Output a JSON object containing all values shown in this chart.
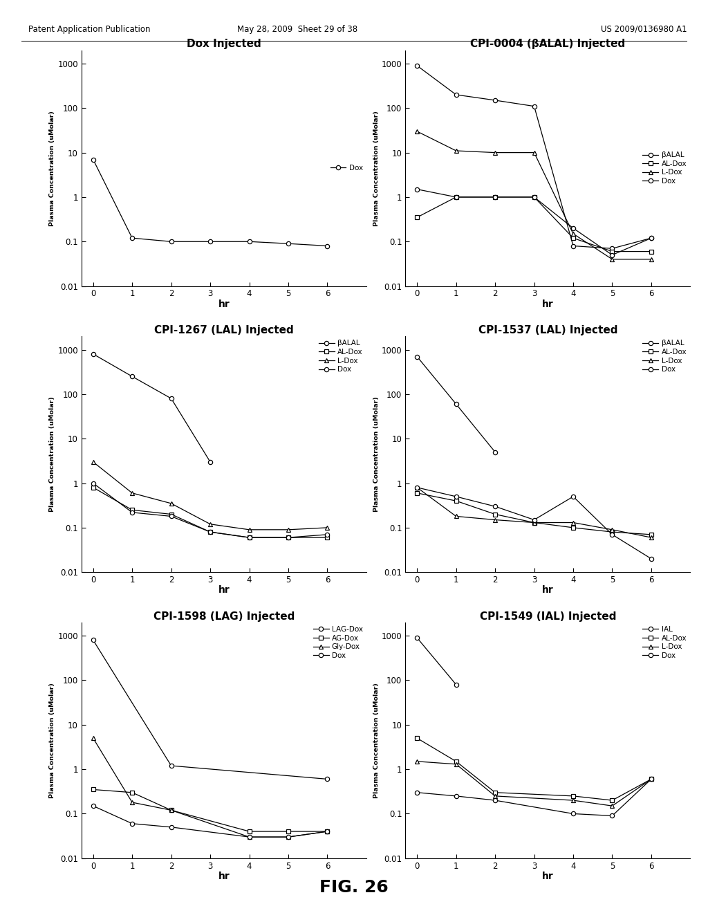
{
  "header_left": "Patent Application Publication",
  "header_mid": "May 28, 2009  Sheet 29 of 38",
  "header_right": "US 2009/0136980 A1",
  "fig_label": "FIG. 26",
  "ylabel": "Plasma Concentration (uMolar)",
  "xlabel": "hr",
  "plots": [
    {
      "title": "Dox Injected",
      "legend_loc": "center right",
      "series": [
        {
          "label": "Dox",
          "marker": "o",
          "x": [
            0,
            1,
            2,
            3,
            4,
            5,
            6
          ],
          "y": [
            7.0,
            0.12,
            0.1,
            0.1,
            0.1,
            0.09,
            0.08
          ]
        }
      ]
    },
    {
      "title": "CPI-0004 (βALAL) Injected",
      "legend_loc": "center right",
      "series": [
        {
          "label": "βALAL",
          "marker": "o",
          "x": [
            0,
            1,
            2,
            3,
            4,
            5,
            6
          ],
          "y": [
            900,
            200,
            150,
            110,
            0.08,
            0.07,
            0.12
          ]
        },
        {
          "label": "AL-Dox",
          "marker": "s",
          "x": [
            0,
            1,
            2,
            3,
            4,
            5,
            6
          ],
          "y": [
            0.35,
            1.0,
            1.0,
            1.0,
            0.12,
            0.06,
            0.06
          ]
        },
        {
          "label": "L-Dox",
          "marker": "^",
          "x": [
            0,
            1,
            2,
            3,
            4,
            5,
            6
          ],
          "y": [
            30,
            11,
            10,
            10,
            0.15,
            0.04,
            0.04
          ]
        },
        {
          "label": "Dox",
          "marker": "o",
          "x": [
            0,
            1,
            2,
            3,
            4,
            5,
            6
          ],
          "y": [
            1.5,
            1.0,
            1.0,
            1.0,
            0.2,
            0.05,
            0.12
          ]
        }
      ]
    },
    {
      "title": "CPI-1267 (LAL) Injected",
      "legend_loc": "upper right",
      "series": [
        {
          "label": "βALAL",
          "marker": "o",
          "x": [
            0,
            1,
            2,
            3
          ],
          "y": [
            800,
            250,
            80,
            3.0
          ]
        },
        {
          "label": "AL-Dox",
          "marker": "s",
          "x": [
            0,
            1,
            2,
            3,
            4,
            5,
            6
          ],
          "y": [
            0.8,
            0.25,
            0.2,
            0.08,
            0.06,
            0.06,
            0.06
          ]
        },
        {
          "label": "L-Dox",
          "marker": "^",
          "x": [
            0,
            1,
            2,
            3,
            4,
            5,
            6
          ],
          "y": [
            3.0,
            0.6,
            0.35,
            0.12,
            0.09,
            0.09,
            0.1
          ]
        },
        {
          "label": "Dox",
          "marker": "o",
          "x": [
            0,
            1,
            2,
            3,
            4,
            5,
            6
          ],
          "y": [
            1.0,
            0.22,
            0.18,
            0.08,
            0.06,
            0.06,
            0.07
          ]
        }
      ]
    },
    {
      "title": "CPI-1537 (LAL) Injected",
      "legend_loc": "upper right",
      "series": [
        {
          "label": "βALAL",
          "marker": "o",
          "x": [
            0,
            1,
            2
          ],
          "y": [
            700,
            60,
            5.0
          ]
        },
        {
          "label": "AL-Dox",
          "marker": "s",
          "x": [
            0,
            1,
            2,
            3,
            4,
            5,
            6
          ],
          "y": [
            0.6,
            0.4,
            0.2,
            0.13,
            0.1,
            0.08,
            0.07
          ]
        },
        {
          "label": "L-Dox",
          "marker": "^",
          "x": [
            0,
            1,
            2,
            3,
            4,
            5,
            6
          ],
          "y": [
            0.8,
            0.18,
            0.15,
            0.13,
            0.13,
            0.09,
            0.06
          ]
        },
        {
          "label": "Dox",
          "marker": "o",
          "x": [
            0,
            1,
            2,
            3,
            4,
            5,
            6
          ],
          "y": [
            0.8,
            0.5,
            0.3,
            0.15,
            0.5,
            0.07,
            0.02
          ]
        }
      ]
    },
    {
      "title": "CPI-1598 (LAG) Injected",
      "legend_loc": "upper right",
      "series": [
        {
          "label": "LAG-Dox",
          "marker": "o",
          "x": [
            0,
            2,
            6
          ],
          "y": [
            800,
            1.2,
            0.6
          ]
        },
        {
          "label": "AG-Dox",
          "marker": "s",
          "x": [
            0,
            1,
            2,
            4,
            5,
            6
          ],
          "y": [
            0.35,
            0.3,
            0.12,
            0.04,
            0.04,
            0.04
          ]
        },
        {
          "label": "Gly-Dox",
          "marker": "^",
          "x": [
            0,
            1,
            2,
            4,
            5,
            6
          ],
          "y": [
            5.0,
            0.18,
            0.12,
            0.03,
            0.03,
            0.04
          ]
        },
        {
          "label": "Dox",
          "marker": "o",
          "x": [
            0,
            1,
            2,
            4,
            5,
            6
          ],
          "y": [
            0.15,
            0.06,
            0.05,
            0.03,
            0.03,
            0.04
          ]
        }
      ]
    },
    {
      "title": "CPI-1549 (IAL) Injected",
      "legend_loc": "upper right",
      "series": [
        {
          "label": "IAL",
          "marker": "o",
          "x": [
            0,
            1
          ],
          "y": [
            900,
            80
          ]
        },
        {
          "label": "AL-Dox",
          "marker": "s",
          "x": [
            0,
            1,
            2,
            4,
            5,
            6
          ],
          "y": [
            5.0,
            1.5,
            0.3,
            0.25,
            0.2,
            0.6
          ]
        },
        {
          "label": "L-Dox",
          "marker": "^",
          "x": [
            0,
            1,
            2,
            4,
            5,
            6
          ],
          "y": [
            1.5,
            1.3,
            0.25,
            0.2,
            0.15,
            0.6
          ]
        },
        {
          "label": "Dox",
          "marker": "o",
          "x": [
            0,
            1,
            2,
            4,
            5,
            6
          ],
          "y": [
            0.3,
            0.25,
            0.2,
            0.1,
            0.09,
            0.6
          ]
        }
      ]
    }
  ]
}
